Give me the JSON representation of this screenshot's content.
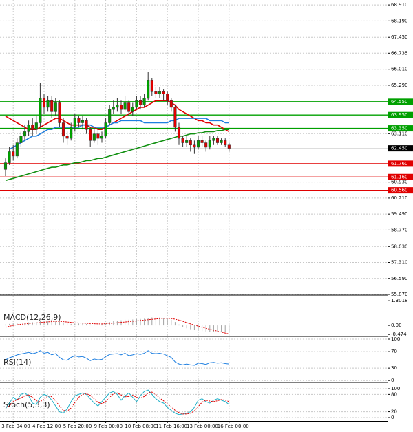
{
  "chart_data": [
    {
      "type": "candlestick",
      "grid": true,
      "up_color": "#00a000",
      "down_color": "#e00000",
      "categories": [
        null,
        null,
        "3 Feb 04:00",
        null,
        null,
        null,
        null,
        null,
        null,
        null,
        "4 Feb 12:00",
        null,
        null,
        null,
        null,
        null,
        null,
        null,
        "5 Feb 20:00",
        null,
        null,
        null,
        null,
        null,
        null,
        null,
        "9 Feb 00:00",
        null,
        null,
        null,
        null,
        null,
        null,
        null,
        "10 Feb 08:00",
        null,
        null,
        null,
        null,
        null,
        null,
        null,
        "11 Feb 16:00",
        null,
        null,
        null,
        null,
        null,
        null,
        null,
        "13 Feb 00:00",
        null,
        null,
        null,
        null,
        null,
        null,
        null,
        "16 Feb 00:00"
      ],
      "open": [
        61.5,
        61.8,
        62.3,
        62.1,
        62.7,
        63.0,
        63.2,
        63.5,
        63.3,
        63.6,
        64.7,
        64.3,
        64.6,
        64.1,
        64.5,
        63.6,
        63.0,
        62.9,
        63.4,
        63.8,
        63.6,
        63.7,
        63.3,
        62.8,
        63.1,
        62.9,
        63.0,
        63.6,
        64.2,
        64.3,
        64.4,
        64.2,
        64.5,
        64.1,
        64.3,
        64.6,
        64.4,
        64.7,
        65.5,
        65.0,
        64.9,
        65.0,
        64.9,
        64.6,
        64.3,
        63.4,
        62.9,
        62.7,
        62.8,
        62.6,
        62.5,
        62.8,
        62.7,
        62.5,
        62.8,
        62.9,
        62.7,
        62.8,
        62.6
      ],
      "high": [
        62.0,
        62.5,
        62.6,
        62.9,
        63.2,
        63.5,
        63.7,
        63.8,
        63.9,
        65.4,
        64.9,
        64.8,
        64.8,
        64.7,
        64.6,
        63.8,
        63.2,
        63.6,
        64.0,
        63.9,
        63.9,
        63.8,
        63.4,
        63.3,
        63.3,
        63.2,
        63.8,
        64.4,
        64.6,
        64.7,
        64.6,
        64.8,
        64.6,
        64.5,
        64.8,
        64.8,
        64.9,
        65.9,
        65.6,
        65.2,
        65.2,
        65.1,
        65.0,
        64.7,
        64.4,
        63.6,
        63.0,
        63.0,
        62.9,
        62.8,
        63.0,
        63.0,
        62.8,
        63.0,
        63.0,
        63.0,
        62.9,
        62.9,
        62.7
      ],
      "low": [
        61.2,
        61.7,
        61.9,
        62.0,
        62.5,
        62.8,
        63.0,
        63.0,
        63.1,
        63.4,
        64.0,
        64.1,
        63.8,
        63.9,
        63.4,
        62.7,
        62.6,
        62.8,
        63.2,
        63.4,
        63.3,
        63.1,
        62.5,
        62.7,
        62.6,
        62.7,
        62.9,
        63.5,
        64.0,
        64.1,
        64.0,
        64.1,
        63.9,
        63.9,
        64.2,
        64.2,
        64.3,
        64.6,
        64.8,
        64.7,
        64.7,
        64.6,
        64.4,
        64.1,
        63.2,
        62.6,
        62.5,
        62.5,
        62.3,
        62.2,
        62.4,
        62.5,
        62.3,
        62.4,
        62.6,
        62.6,
        62.6,
        62.5,
        62.3
      ],
      "close": [
        61.8,
        62.3,
        62.1,
        62.7,
        63.0,
        63.2,
        63.5,
        63.3,
        63.6,
        64.7,
        64.3,
        64.6,
        64.1,
        64.5,
        63.6,
        63.0,
        62.9,
        63.4,
        63.8,
        63.6,
        63.7,
        63.3,
        62.8,
        63.1,
        62.9,
        63.0,
        63.6,
        64.2,
        64.3,
        64.4,
        64.2,
        64.5,
        64.1,
        64.3,
        64.6,
        64.4,
        64.7,
        65.5,
        65.0,
        64.9,
        65.0,
        64.9,
        64.6,
        64.3,
        63.4,
        62.9,
        62.7,
        62.8,
        62.6,
        62.5,
        62.8,
        62.7,
        62.5,
        62.8,
        62.9,
        62.7,
        62.8,
        62.6,
        62.45
      ],
      "series": [
        {
          "color": "#e00000",
          "values": [
            63.9,
            63.8,
            63.7,
            63.6,
            63.5,
            63.4,
            63.3,
            63.3,
            63.3,
            63.4,
            63.5,
            63.6,
            63.7,
            63.8,
            63.8,
            63.7,
            63.6,
            63.5,
            63.5,
            63.5,
            63.5,
            63.5,
            63.4,
            63.4,
            63.3,
            63.3,
            63.4,
            63.5,
            63.6,
            63.7,
            63.8,
            63.9,
            64.0,
            64.1,
            64.2,
            64.3,
            64.3,
            64.4,
            64.5,
            64.6,
            64.6,
            64.6,
            64.6,
            64.5,
            64.4,
            64.2,
            64.1,
            64.0,
            63.9,
            63.8,
            63.7,
            63.7,
            63.6,
            63.6,
            63.5,
            63.5,
            63.4,
            63.3,
            63.2
          ]
        },
        {
          "color": "#1e7fe0",
          "values": [
            null,
            62.4,
            62.5,
            62.6,
            62.7,
            62.8,
            62.9,
            63.0,
            63.0,
            63.1,
            63.2,
            63.3,
            63.3,
            63.4,
            63.4,
            63.4,
            63.4,
            63.4,
            63.4,
            63.4,
            63.5,
            63.5,
            63.5,
            63.4,
            63.4,
            63.4,
            63.4,
            63.5,
            63.6,
            63.6,
            63.7,
            63.7,
            63.7,
            63.7,
            63.7,
            63.7,
            63.6,
            63.6,
            63.6,
            63.6,
            63.6,
            63.6,
            63.6,
            63.7,
            63.7,
            63.8,
            63.8,
            63.8,
            63.8,
            63.8,
            63.8,
            63.8,
            63.8,
            63.7,
            63.7,
            63.7,
            63.7,
            63.6,
            63.6
          ]
        },
        {
          "color": "#109010",
          "values": [
            61.0,
            61.05,
            61.1,
            61.15,
            61.2,
            61.25,
            61.3,
            61.35,
            61.4,
            61.45,
            61.5,
            61.55,
            61.6,
            61.6,
            61.65,
            61.7,
            61.7,
            61.75,
            61.8,
            61.8,
            61.85,
            61.9,
            61.9,
            61.95,
            62.0,
            62.0,
            62.05,
            62.1,
            62.15,
            62.2,
            62.25,
            62.3,
            62.35,
            62.4,
            62.45,
            62.5,
            62.55,
            62.6,
            62.65,
            62.7,
            62.75,
            62.8,
            62.85,
            62.9,
            62.95,
            63.0,
            63.0,
            63.05,
            63.1,
            63.1,
            63.15,
            63.15,
            63.2,
            63.2,
            63.2,
            63.25,
            63.25,
            63.3,
            63.3
          ]
        }
      ],
      "levels": [
        {
          "value": 64.55,
          "label": "64.550",
          "color": "#00a000"
        },
        {
          "value": 63.95,
          "label": "63.950",
          "color": "#00a000"
        },
        {
          "value": 63.35,
          "label": "63.350",
          "color": "#00a000"
        },
        {
          "value": 61.76,
          "label": "61.760",
          "color": "#e00000"
        },
        {
          "value": 61.16,
          "label": "61.160",
          "color": "#e00000"
        },
        {
          "value": 60.56,
          "label": "60.560",
          "color": "#e00000"
        }
      ],
      "last": {
        "value": 62.45,
        "label": "62.450"
      },
      "ylim": [
        55.87,
        69.13
      ],
      "yticks": [
        {
          "value": 68.91,
          "label": "68.910"
        },
        {
          "value": 68.19,
          "label": "68.190"
        },
        {
          "value": 67.45,
          "label": "67.450"
        },
        66.735,
        {
          "value": 66.01,
          "label": "66.010"
        },
        {
          "value": 65.29,
          "label": "65.290"
        },
        {
          "value": 63.11,
          "label": "63.110"
        },
        {
          "value": 60.93,
          "label": "60.930"
        },
        {
          "value": 60.21,
          "label": "60.210"
        },
        {
          "value": 59.49,
          "label": "59.490"
        },
        {
          "value": 58.77,
          "label": "58.770"
        },
        {
          "value": 58.03,
          "label": "58.030"
        },
        {
          "value": 57.31,
          "label": "57.310"
        },
        {
          "value": 56.59,
          "label": "56.590"
        },
        {
          "value": 55.87,
          "label": "55.870"
        }
      ]
    },
    {
      "type": "bar",
      "title": "MACD(12,26,9)",
      "color": "#a0a0a0",
      "grid": false,
      "values": [
        0.05,
        0.08,
        0.1,
        0.12,
        0.14,
        0.15,
        0.16,
        0.17,
        0.18,
        0.22,
        0.24,
        0.25,
        0.25,
        0.24,
        0.2,
        0.15,
        0.1,
        0.08,
        0.08,
        0.1,
        0.1,
        0.08,
        0.05,
        0.04,
        0.05,
        0.08,
        0.12,
        0.18,
        0.22,
        0.25,
        0.27,
        0.3,
        0.3,
        0.31,
        0.33,
        0.34,
        0.35,
        0.4,
        0.42,
        0.42,
        0.42,
        0.4,
        0.36,
        0.3,
        0.18,
        0.05,
        -0.08,
        -0.15,
        -0.2,
        -0.25,
        -0.28,
        -0.3,
        -0.32,
        -0.33,
        -0.34,
        -0.35,
        -0.35,
        -0.36,
        -0.37
      ],
      "series": [
        {
          "color": "#e00000",
          "dashed": true,
          "values": [
            -0.1,
            -0.05,
            0.0,
            0.03,
            0.06,
            0.08,
            0.1,
            0.12,
            0.13,
            0.15,
            0.17,
            0.19,
            0.2,
            0.21,
            0.21,
            0.2,
            0.18,
            0.16,
            0.14,
            0.13,
            0.12,
            0.11,
            0.1,
            0.09,
            0.08,
            0.08,
            0.09,
            0.1,
            0.12,
            0.14,
            0.16,
            0.18,
            0.2,
            0.22,
            0.24,
            0.26,
            0.28,
            0.3,
            0.32,
            0.34,
            0.36,
            0.37,
            0.37,
            0.36,
            0.33,
            0.28,
            0.22,
            0.15,
            0.08,
            0.02,
            -0.04,
            -0.1,
            -0.15,
            -0.2,
            -0.25,
            -0.3,
            -0.35,
            -0.4,
            -0.45
          ]
        }
      ],
      "ylim": [
        -0.54,
        1.56
      ],
      "yticks": [
        1.3018,
        {
          "value": 0,
          "label": "0.00"
        },
        -0.474
      ]
    },
    {
      "type": "line",
      "title": "RSI(14)",
      "grid": true,
      "series": [
        {
          "color": "#1e7fe0",
          "values": [
            50,
            55,
            58,
            62,
            64,
            66,
            68,
            65,
            67,
            72,
            66,
            68,
            62,
            65,
            56,
            50,
            49,
            56,
            60,
            57,
            58,
            54,
            48,
            52,
            50,
            51,
            58,
            63,
            64,
            65,
            62,
            66,
            60,
            62,
            65,
            63,
            66,
            72,
            66,
            65,
            66,
            64,
            60,
            56,
            45,
            40,
            38,
            40,
            38,
            37,
            42,
            41,
            39,
            43,
            44,
            42,
            43,
            41,
            40
          ]
        }
      ],
      "ylim": [
        -3,
        105
      ],
      "yticks": [
        100,
        70,
        30,
        0
      ]
    },
    {
      "type": "line",
      "title": "Stoch(5,3,3)",
      "grid": true,
      "series": [
        {
          "color": "#20b0c8",
          "values": [
            30,
            50,
            70,
            60,
            80,
            85,
            75,
            50,
            45,
            70,
            80,
            75,
            60,
            40,
            20,
            15,
            30,
            55,
            75,
            80,
            85,
            80,
            65,
            50,
            40,
            55,
            70,
            85,
            90,
            80,
            60,
            75,
            85,
            70,
            55,
            75,
            90,
            95,
            80,
            65,
            55,
            50,
            35,
            25,
            15,
            10,
            12,
            15,
            20,
            35,
            60,
            65,
            55,
            50,
            60,
            65,
            60,
            55,
            45
          ]
        },
        {
          "color": "#e00000",
          "dashed": true,
          "values": [
            35,
            40,
            55,
            62,
            68,
            75,
            78,
            70,
            58,
            55,
            63,
            75,
            72,
            58,
            40,
            25,
            22,
            33,
            52,
            70,
            80,
            82,
            77,
            65,
            52,
            48,
            55,
            70,
            82,
            85,
            78,
            72,
            73,
            77,
            70,
            67,
            73,
            85,
            88,
            80,
            67,
            58,
            47,
            37,
            25,
            17,
            12,
            12,
            15,
            23,
            38,
            53,
            60,
            57,
            55,
            58,
            62,
            60,
            55
          ]
        }
      ],
      "ylim": [
        -12,
        119
      ],
      "yticks": [
        100,
        80,
        20,
        0
      ]
    }
  ]
}
